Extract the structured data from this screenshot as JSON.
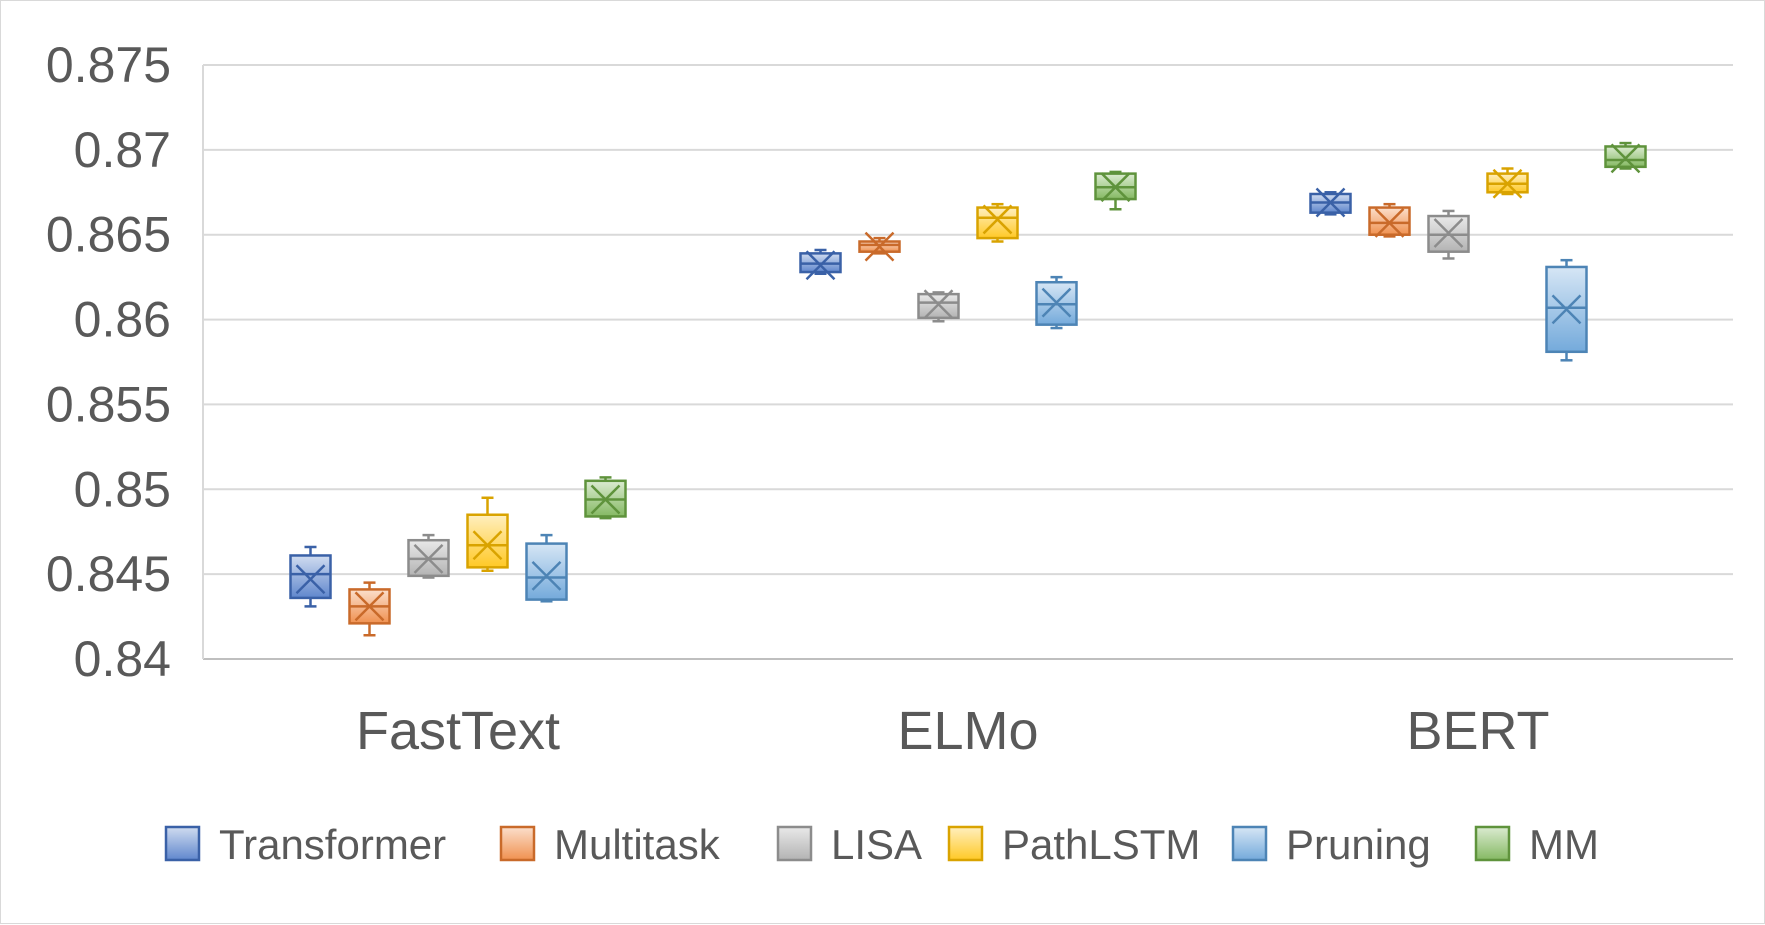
{
  "chart_data": {
    "type": "box",
    "title": "",
    "xlabel": "",
    "ylabel": "",
    "ylim": [
      0.84,
      0.875
    ],
    "yticks": [
      "0.84",
      "0.845",
      "0.85",
      "0.855",
      "0.86",
      "0.865",
      "0.87",
      "0.875"
    ],
    "grid": true,
    "legend_position": "bottom",
    "categories": [
      "FastText",
      "ELMo",
      "BERT"
    ],
    "series": [
      {
        "name": "Transformer",
        "color": "#4472C4",
        "boxes": [
          {
            "min": 0.8431,
            "q1": 0.8436,
            "median": 0.845,
            "q3": 0.8461,
            "max": 0.8466,
            "mean": 0.8447
          },
          {
            "min": 0.8627,
            "q1": 0.8628,
            "median": 0.8633,
            "q3": 0.8639,
            "max": 0.8641,
            "mean": 0.8632
          },
          {
            "min": 0.8662,
            "q1": 0.8663,
            "median": 0.8669,
            "q3": 0.8674,
            "max": 0.8675,
            "mean": 0.8669
          }
        ]
      },
      {
        "name": "Multitask",
        "color": "#ED7D31",
        "boxes": [
          {
            "min": 0.8414,
            "q1": 0.8421,
            "median": 0.8431,
            "q3": 0.8441,
            "max": 0.8445,
            "mean": 0.8431
          },
          {
            "min": 0.8639,
            "q1": 0.864,
            "median": 0.8644,
            "q3": 0.8646,
            "max": 0.8648,
            "mean": 0.8643
          },
          {
            "min": 0.8649,
            "q1": 0.865,
            "median": 0.8657,
            "q3": 0.8666,
            "max": 0.8668,
            "mean": 0.8657
          }
        ]
      },
      {
        "name": "LISA",
        "color": "#A5A5A5",
        "boxes": [
          {
            "min": 0.8448,
            "q1": 0.8449,
            "median": 0.8459,
            "q3": 0.847,
            "max": 0.8473,
            "mean": 0.8459
          },
          {
            "min": 0.8599,
            "q1": 0.8601,
            "median": 0.861,
            "q3": 0.8615,
            "max": 0.8616,
            "mean": 0.8609
          },
          {
            "min": 0.8636,
            "q1": 0.864,
            "median": 0.865,
            "q3": 0.8661,
            "max": 0.8664,
            "mean": 0.8651
          }
        ]
      },
      {
        "name": "PathLSTM",
        "color": "#FFC000",
        "boxes": [
          {
            "min": 0.8452,
            "q1": 0.8454,
            "median": 0.8467,
            "q3": 0.8485,
            "max": 0.8495,
            "mean": 0.8467
          },
          {
            "min": 0.8646,
            "q1": 0.8648,
            "median": 0.866,
            "q3": 0.8666,
            "max": 0.8668,
            "mean": 0.8659
          },
          {
            "min": 0.8674,
            "q1": 0.8675,
            "median": 0.868,
            "q3": 0.8686,
            "max": 0.8689,
            "mean": 0.868
          }
        ]
      },
      {
        "name": "Pruning",
        "color": "#5B9BD5",
        "boxes": [
          {
            "min": 0.8434,
            "q1": 0.8435,
            "median": 0.8448,
            "q3": 0.8468,
            "max": 0.8473,
            "mean": 0.8449
          },
          {
            "min": 0.8595,
            "q1": 0.8597,
            "median": 0.8609,
            "q3": 0.8622,
            "max": 0.8625,
            "mean": 0.861
          },
          {
            "min": 0.8576,
            "q1": 0.8581,
            "median": 0.8607,
            "q3": 0.8631,
            "max": 0.8635,
            "mean": 0.8606
          }
        ]
      },
      {
        "name": "MM",
        "color": "#70AD47",
        "boxes": [
          {
            "min": 0.8483,
            "q1": 0.8484,
            "median": 0.8494,
            "q3": 0.8505,
            "max": 0.8507,
            "mean": 0.8494
          },
          {
            "min": 0.8665,
            "q1": 0.8671,
            "median": 0.8678,
            "q3": 0.8686,
            "max": 0.8687,
            "mean": 0.8678
          },
          {
            "min": 0.8689,
            "q1": 0.869,
            "median": 0.8694,
            "q3": 0.8702,
            "max": 0.8704,
            "mean": 0.8695
          }
        ]
      }
    ]
  }
}
